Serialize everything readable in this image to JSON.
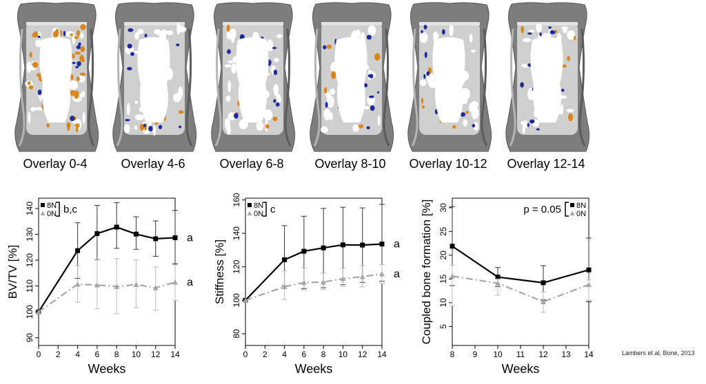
{
  "overlays": [
    {
      "label": "Overlay 0-4"
    },
    {
      "label": "Overlay 4-6"
    },
    {
      "label": "Overlay 6-8"
    },
    {
      "label": "Overlay 8-10"
    },
    {
      "label": "Overlay 10-12"
    },
    {
      "label": "Overlay 12-14"
    }
  ],
  "colors": {
    "series_8N": "#000000",
    "series_0N": "#a6a6a6",
    "bone_gray": "#7d7d7d",
    "formation_orange": "#d9861c",
    "resorption_blue": "#1d2a9e"
  },
  "credit": "Lambers et al, Bone, 2013",
  "chart_data": [
    {
      "type": "line",
      "xlabel": "Weeks",
      "ylabel": "BV/TV [%]",
      "xlim": [
        0,
        14
      ],
      "ylim": [
        87,
        144
      ],
      "x_ticks": [
        0,
        2,
        4,
        6,
        8,
        10,
        12,
        14
      ],
      "y_ticks": [
        90,
        100,
        110,
        120,
        130,
        140
      ],
      "x": [
        0,
        4,
        6,
        8,
        10,
        12,
        14
      ],
      "series": [
        {
          "name": "8N",
          "values": [
            100,
            123.7,
            130.3,
            132.8,
            130.1,
            128.3,
            128.7
          ],
          "err_upper": [
            100,
            134.5,
            141.2,
            142.3,
            136.8,
            135.2,
            139.3
          ],
          "err_lower": [
            100,
            113.0,
            120.2,
            124.6,
            124.2,
            121.5,
            118.6
          ],
          "end_label": "a"
        },
        {
          "name": "0N",
          "values": [
            100,
            110.7,
            110.4,
            109.8,
            110.6,
            109.3,
            111.5
          ],
          "err_upper": [
            100,
            117.9,
            120.1,
            120.6,
            120.2,
            117.4,
            118.2
          ],
          "err_lower": [
            100,
            103.7,
            101.3,
            99.3,
            101.6,
            100.6,
            104.4
          ],
          "end_label": "a"
        }
      ],
      "legend_position": "top-left",
      "legend_annotation": "b,c"
    },
    {
      "type": "line",
      "xlabel": "Weeks",
      "ylabel": "Stiffness [%]",
      "xlim": [
        0,
        14
      ],
      "ylim": [
        73,
        161
      ],
      "x_ticks": [
        0,
        2,
        4,
        6,
        8,
        10,
        12,
        14
      ],
      "y_ticks": [
        80,
        100,
        120,
        140,
        160
      ],
      "x": [
        0,
        4,
        6,
        8,
        10,
        12,
        14
      ],
      "series": [
        {
          "name": "8N",
          "values": [
            100,
            124.2,
            129.3,
            131.3,
            133.1,
            133.0,
            133.6
          ],
          "err_upper": [
            100,
            144.6,
            150.2,
            154.9,
            155.6,
            155.2,
            157.3
          ],
          "err_lower": [
            100,
            108.6,
            107.0,
            107.5,
            109.3,
            110.7,
            111.4
          ],
          "end_label": "a"
        },
        {
          "name": "0N",
          "values": [
            100,
            108.1,
            110.6,
            110.9,
            112.9,
            114.1,
            115.7
          ],
          "err_upper": [
            100,
            117.5,
            119.2,
            116.3,
            119.0,
            120.8,
            121.3
          ],
          "err_lower": [
            100,
            100.5,
            106.1,
            106.4,
            108.2,
            108.0,
            110.0
          ],
          "end_label": "a"
        }
      ],
      "legend_position": "top-left",
      "legend_annotation": "c"
    },
    {
      "type": "line",
      "xlabel": "Weeks",
      "ylabel": "Coupled bone formation [%]",
      "xlim": [
        8,
        14
      ],
      "ylim": [
        1,
        32
      ],
      "x_ticks": [
        8,
        9,
        10,
        11,
        12,
        13,
        14
      ],
      "y_ticks": [
        5,
        10,
        15,
        20,
        25,
        30
      ],
      "x": [
        8,
        10,
        12,
        14
      ],
      "series": [
        {
          "name": "8N",
          "values": [
            21.9,
            15.4,
            14.2,
            16.9
          ],
          "err_upper": [
            30.2,
            17.4,
            17.8,
            23.6
          ],
          "err_lower": [
            13.6,
            13.4,
            10.6,
            10.2
          ],
          "end_label": ""
        },
        {
          "name": "0N",
          "values": [
            15.6,
            14.1,
            10.2,
            13.8
          ],
          "err_upper": [
            17.9,
            15.0,
            12.3,
            14.8
          ],
          "err_lower": [
            9.3,
            11.6,
            8.0,
            10.5
          ],
          "end_label": ""
        }
      ],
      "legend_position": "top-right",
      "legend_annotation": "p = 0.05"
    }
  ]
}
